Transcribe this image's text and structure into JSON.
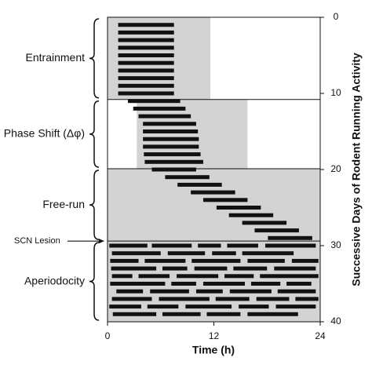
{
  "chart_data": {
    "type": "actogram",
    "xlabel": "Time (h)",
    "ylabel": "Successive Days of Rodent Running Activity",
    "xlim": [
      0,
      24
    ],
    "xticks": [
      0,
      12,
      24
    ],
    "ylim": [
      0,
      40
    ],
    "yticks": [
      0,
      10,
      20,
      30,
      40
    ],
    "bar_color": "#111111",
    "shade_color": "#d3d3d3",
    "shaded": [
      {
        "from": 0,
        "to": 11.6,
        "day_from": 0,
        "day_to": 10.8
      },
      {
        "from": 3.3,
        "to": 15.8,
        "day_from": 10.8,
        "day_to": 19.9
      },
      {
        "from": 0,
        "to": 24,
        "day_from": 19.9,
        "day_to": 29.4
      },
      {
        "from": 0,
        "to": 24,
        "day_from": 29.4,
        "day_to": 40
      }
    ],
    "phases": [
      {
        "label": "Entrainment",
        "start": 0,
        "end": 10.8
      },
      {
        "label": "Phase Shift (Δφ)",
        "start": 10.8,
        "end": 19.9
      },
      {
        "label": "Free-run",
        "start": 19.9,
        "end": 29.4
      },
      {
        "label": "Aperiodocity",
        "start": 29.4,
        "end": 40
      }
    ],
    "annotation": {
      "text": "SCN Lesion",
      "day": 29.4
    },
    "days": [
      1,
      2,
      3,
      4,
      5,
      6,
      7,
      8,
      9,
      10,
      11,
      12,
      13,
      14,
      15,
      16,
      17,
      18,
      19,
      20,
      21,
      22,
      23,
      24,
      25,
      26,
      27,
      28,
      29,
      30,
      30,
      30,
      30,
      30,
      31,
      31,
      31,
      31,
      32,
      32,
      32,
      32,
      32,
      33,
      33,
      33,
      33,
      33,
      34,
      34,
      34,
      34,
      34,
      35,
      35,
      35,
      35,
      35,
      36,
      36,
      36,
      36,
      36,
      37,
      37,
      37,
      37,
      37,
      38,
      38,
      38,
      38,
      38,
      39,
      39,
      39,
      39
    ],
    "onsets": [
      1.2,
      1.2,
      1.2,
      1.2,
      1.2,
      1.2,
      1.2,
      1.2,
      1.2,
      1.2,
      2.3,
      2.9,
      3.5,
      4.0,
      4.0,
      4.0,
      4.0,
      4.1,
      4.2,
      5.0,
      6.5,
      7.9,
      9.4,
      10.8,
      12.3,
      13.7,
      15.2,
      16.6,
      18.1,
      0.2,
      5.0,
      10.2,
      13.5,
      17.8,
      0.5,
      6.8,
      11.8,
      15.2,
      0.3,
      4.2,
      9.5,
      15.8,
      20.8,
      0.4,
      6.2,
      9.8,
      14.2,
      18.8,
      0.5,
      3.5,
      7.8,
      13.2,
      17.2,
      0.3,
      7.2,
      10.8,
      16.2,
      20.2,
      1.0,
      4.8,
      10.0,
      13.8,
      19.2,
      0.5,
      5.8,
      12.2,
      16.8,
      21.2,
      0.2,
      4.5,
      8.8,
      14.8,
      19.0,
      0.6,
      6.2,
      11.2,
      15.8
    ],
    "offsets": [
      7.5,
      7.5,
      7.5,
      7.5,
      7.5,
      7.5,
      7.5,
      7.5,
      7.5,
      7.5,
      8.2,
      8.8,
      9.4,
      10.0,
      10.2,
      10.3,
      10.3,
      10.5,
      10.8,
      10.0,
      11.5,
      12.9,
      14.4,
      15.8,
      17.3,
      18.7,
      20.2,
      21.6,
      23.1,
      4.5,
      9.5,
      12.8,
      17.0,
      23.5,
      6.0,
      11.0,
      14.5,
      21.0,
      3.5,
      8.8,
      15.0,
      20.0,
      23.8,
      5.5,
      9.0,
      13.5,
      18.0,
      23.5,
      2.8,
      7.0,
      12.5,
      16.5,
      23.8,
      6.5,
      10.0,
      15.5,
      19.5,
      23.0,
      4.0,
      9.2,
      13.0,
      18.5,
      23.5,
      5.0,
      11.5,
      16.0,
      20.5,
      23.8,
      3.8,
      8.0,
      14.0,
      18.2,
      23.5,
      5.5,
      10.5,
      15.0,
      21.5
    ]
  }
}
